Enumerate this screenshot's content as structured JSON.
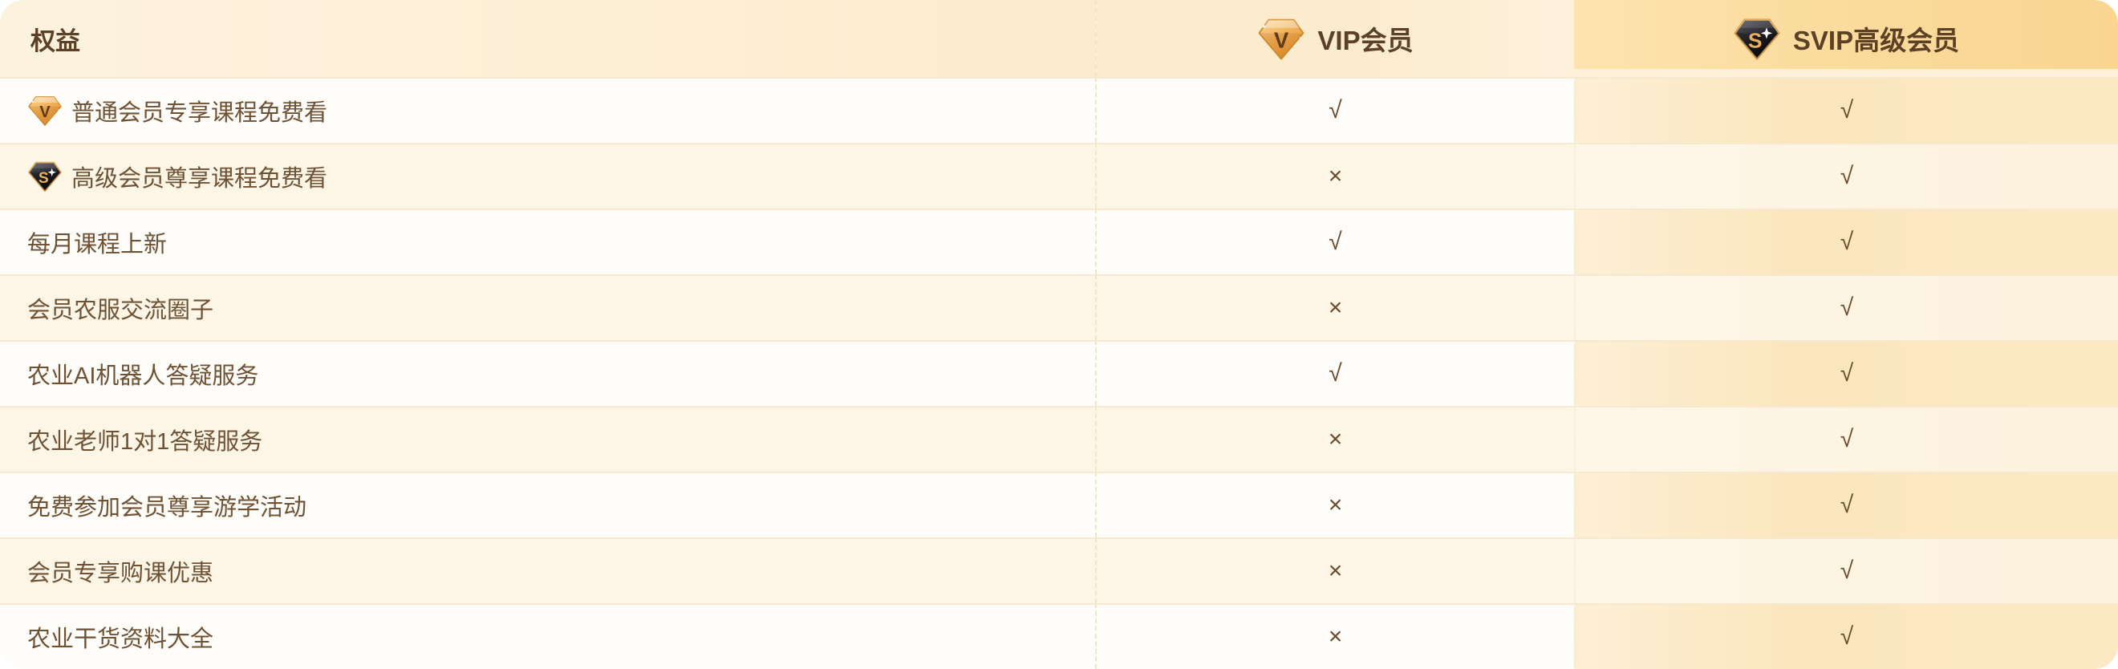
{
  "table": {
    "header": {
      "benefit_label": "权益",
      "vip_label": "VIP会员",
      "svip_label": "SVIP高级会员"
    },
    "marks": {
      "yes": "√",
      "no": "×"
    },
    "rows": [
      {
        "label": "普通会员专享课程免费看",
        "icon": "vip",
        "vip": "yes",
        "svip": "yes"
      },
      {
        "label": "高级会员尊享课程免费看",
        "icon": "svip",
        "vip": "no",
        "svip": "yes"
      },
      {
        "label": "每月课程上新",
        "vip": "yes",
        "svip": "yes"
      },
      {
        "label": "会员农服交流圈子",
        "vip": "no",
        "svip": "yes"
      },
      {
        "label": "农业AI机器人答疑服务",
        "vip": "yes",
        "svip": "yes"
      },
      {
        "label": "农业老师1对1答疑服务",
        "vip": "no",
        "svip": "yes"
      },
      {
        "label": "免费参加会员尊享游学活动",
        "vip": "no",
        "svip": "yes"
      },
      {
        "label": "会员专享购课优惠",
        "vip": "no",
        "svip": "yes"
      },
      {
        "label": "农业干货资料大全",
        "vip": "no",
        "svip": "yes"
      }
    ],
    "icons": {
      "vip": "gold-diamond-v-icon",
      "svip": "black-diamond-s-icon"
    },
    "colors": {
      "svip_header_gold": "#f9d590",
      "header_cream": "#fcebcc",
      "row_even_cream": "#fdf6e7",
      "svip_row_peach": "#fbe6bd",
      "row_text_brown": "#6f5134",
      "heading_brown": "#5d4126",
      "mark_brown": "#6b4a2b",
      "vip_diamond_gold": "#f1b05a",
      "svip_diamond_dark": "#26262c"
    }
  }
}
